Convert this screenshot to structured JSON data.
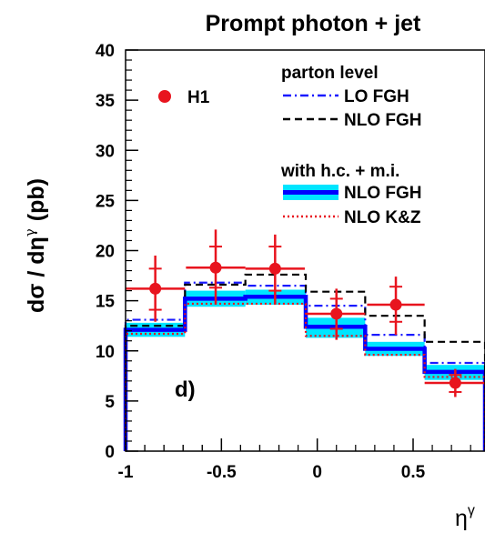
{
  "chart_data": {
    "type": "line",
    "title": "Prompt photon + jet",
    "xlabel": "η",
    "xlabel_sup": "γ",
    "ylabel": "dσ / dη",
    "ylabel_sup": "γ",
    "ylabel_unit": "(pb)",
    "panel_label": "d)",
    "xlim": [
      -1.0,
      0.875
    ],
    "ylim": [
      0,
      40
    ],
    "xticks": [
      -1,
      -0.5,
      0,
      0.5
    ],
    "xtick_labels": [
      "-1",
      "-0.5",
      "0",
      "0.5"
    ],
    "yticks": [
      0,
      5,
      10,
      15,
      20,
      25,
      30,
      35,
      40
    ],
    "ytick_labels": [
      "0",
      "5",
      "10",
      "15",
      "20",
      "25",
      "30",
      "35",
      "40"
    ],
    "bin_edges": [
      -1.0,
      -0.69,
      -0.375,
      -0.06,
      0.25,
      0.56,
      0.875
    ],
    "data": {
      "name": "H1",
      "color": "#e8141e",
      "x": [
        -0.845,
        -0.53,
        -0.22,
        0.1,
        0.41,
        0.72
      ],
      "y": [
        16.2,
        18.3,
        18.2,
        13.7,
        14.6,
        6.8
      ],
      "xerr_low": [
        0.155,
        0.155,
        0.155,
        0.16,
        0.15,
        0.16
      ],
      "xerr_high": [
        0.155,
        0.155,
        0.155,
        0.15,
        0.15,
        0.155
      ],
      "stat_low": [
        14.1,
        16.3,
        16.0,
        12.2,
        12.9,
        5.9
      ],
      "stat_high": [
        18.2,
        20.4,
        20.4,
        15.2,
        16.4,
        7.6
      ],
      "tot_low": [
        12.9,
        14.6,
        14.6,
        11.1,
        11.6,
        5.4
      ],
      "tot_high": [
        19.5,
        22.1,
        21.6,
        16.2,
        17.4,
        8.2
      ]
    },
    "series": [
      {
        "name": "LO FGH",
        "group": "parton level",
        "style": "dash-dot",
        "color": "#1a1aff",
        "values": [
          13.1,
          16.8,
          16.5,
          14.5,
          11.6,
          8.8
        ]
      },
      {
        "name": "NLO FGH",
        "group": "parton level",
        "style": "dashed",
        "color": "#000000",
        "values": [
          12.5,
          16.6,
          17.6,
          15.9,
          13.5,
          10.9
        ]
      },
      {
        "name": "NLO FGH",
        "group": "with h.c. + m.i.",
        "style": "band",
        "color": "#0000ff",
        "band_color": "#00e5ff",
        "values": [
          12.1,
          15.2,
          15.4,
          12.4,
          10.2,
          7.9
        ],
        "band_low": [
          11.4,
          14.4,
          14.6,
          11.3,
          9.5,
          7.1
        ],
        "band_high": [
          12.8,
          16.0,
          16.1,
          13.3,
          10.9,
          8.6
        ]
      },
      {
        "name": "NLO K&Z",
        "group": "with h.c. + m.i.",
        "style": "dotted",
        "color": "#e8141e",
        "values": [
          11.7,
          14.7,
          14.7,
          11.5,
          9.6,
          7.4
        ]
      }
    ],
    "legend": {
      "data_label": "H1",
      "group1_title": "parton level",
      "group2_title": "with h.c. + m.i.",
      "placement": "top-right"
    },
    "grid": false
  }
}
